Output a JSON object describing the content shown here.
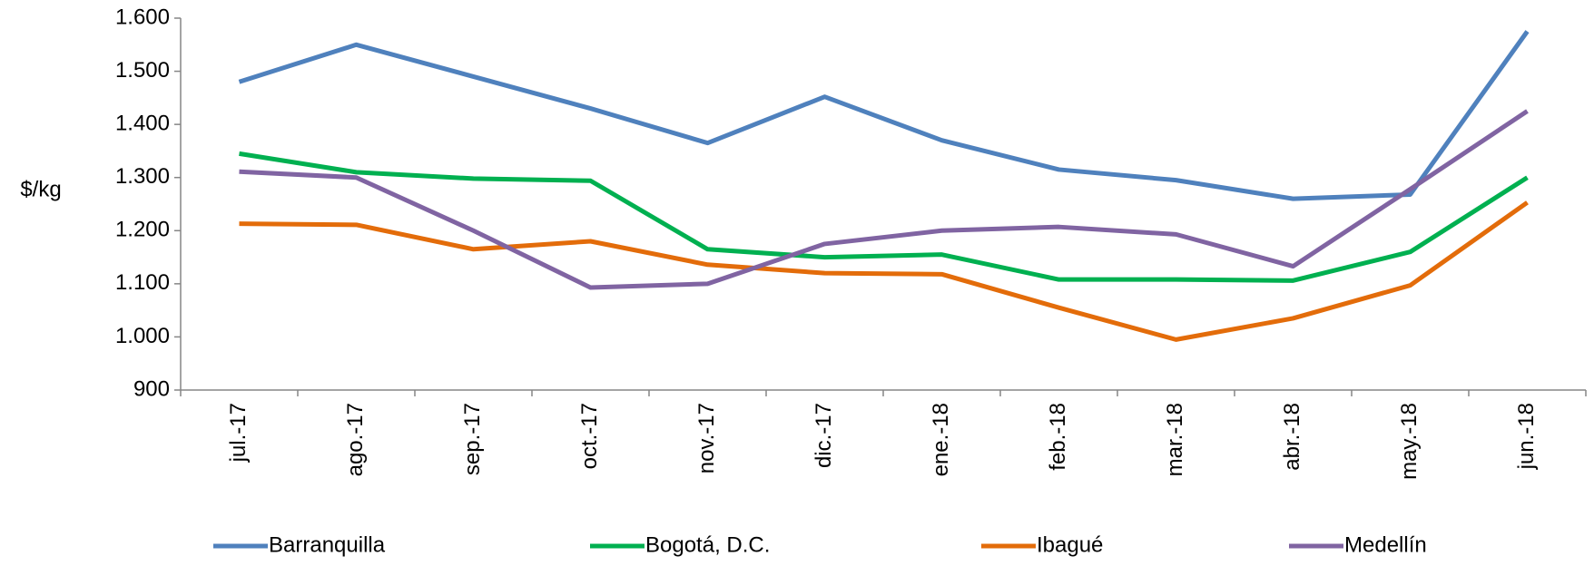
{
  "chart_data": {
    "type": "line",
    "y_label": "$/kg",
    "categories": [
      "jul.-17",
      "ago.-17",
      "sep.-17",
      "oct.-17",
      "nov.-17",
      "dic.-17",
      "ene.-18",
      "feb.-18",
      "mar.-18",
      "abr.-18",
      "may.-18",
      "jun.-18"
    ],
    "series": [
      {
        "name": "Barranquilla",
        "color": "#4f81bd",
        "values": [
          1480,
          1550,
          1490,
          1430,
          1365,
          1452,
          1370,
          1315,
          1295,
          1260,
          1268,
          1575
        ]
      },
      {
        "name": "Bogotá, D.C.",
        "color": "#00b050",
        "values": [
          1345,
          1310,
          1298,
          1294,
          1165,
          1150,
          1155,
          1108,
          1108,
          1106,
          1160,
          1300
        ]
      },
      {
        "name": "Ibagué",
        "color": "#e36c0a",
        "values": [
          1213,
          1211,
          1165,
          1180,
          1136,
          1120,
          1118,
          1055,
          995,
          1035,
          1097,
          1253
        ]
      },
      {
        "name": "Medellín",
        "color": "#8064a2",
        "values": [
          1311,
          1300,
          1200,
          1093,
          1100,
          1175,
          1200,
          1207,
          1193,
          1133,
          1278,
          1425
        ]
      }
    ],
    "ylim": [
      900,
      1600
    ],
    "yticks": [
      {
        "value": 900,
        "label": "900"
      },
      {
        "value": 1000,
        "label": "1.000"
      },
      {
        "value": 1100,
        "label": "1.100"
      },
      {
        "value": 1200,
        "label": "1.200"
      },
      {
        "value": 1300,
        "label": "1.300"
      },
      {
        "value": 1400,
        "label": "1.400"
      },
      {
        "value": 1500,
        "label": "1.500"
      },
      {
        "value": 1600,
        "label": "1.600"
      }
    ],
    "grid": false,
    "legend": "bottom"
  }
}
